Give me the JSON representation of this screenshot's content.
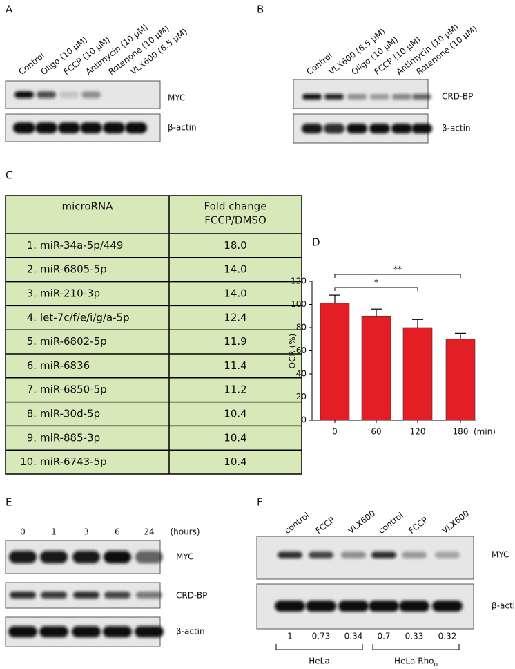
{
  "panels": {
    "A": {
      "label": "A",
      "lanes": [
        "Control",
        "Oligo (10 μM)",
        "FCCP (10 μM)",
        "Antimycin (10 μM)",
        "Rotenone (10 μM)",
        "VLX600 (6.5 μM)"
      ],
      "blots": [
        "MYC",
        "β-actin"
      ]
    },
    "B": {
      "label": "B",
      "lanes": [
        "Control",
        "VLX600 (6.5 μM)",
        "Oligo (10 μM)",
        "FCCP (10 μM)",
        "Antimycin (10 μM)",
        "Rotenone (10 μM)"
      ],
      "blots": [
        "CRD-BP",
        "β-actin"
      ]
    },
    "C": {
      "label": "C",
      "table": {
        "header": {
          "microrna": "microRNA",
          "fold_change": [
            "Fold change",
            "FCCP/DMSO"
          ]
        },
        "rows": [
          [
            "1.",
            "miR-34a-5p/449",
            "18.0"
          ],
          [
            "2.",
            "miR-6805-5p",
            "14.0"
          ],
          [
            "3.",
            "miR-210-3p",
            "14.0"
          ],
          [
            "4.",
            "let-7c/f/e/i/g/a-5p",
            "12.4"
          ],
          [
            "5.",
            "miR-6802-5p",
            "11.9"
          ],
          [
            "6.",
            "miR-6836",
            "11.4"
          ],
          [
            "7.",
            "miR-6850-5p",
            "11.2"
          ],
          [
            "8.",
            "miR-30d-5p",
            "10.4"
          ],
          [
            "9.",
            "miR-885-3p",
            "10.4"
          ],
          [
            "10.",
            "miR-6743-5p",
            "10.4"
          ]
        ]
      }
    },
    "E": {
      "label": "E",
      "times": [
        "0",
        "1",
        "3",
        "6",
        "24"
      ],
      "time_unit": "(hours)",
      "blots": [
        "MYC",
        "CRD-BP",
        "β-actin"
      ]
    },
    "F": {
      "label": "F",
      "lanes": [
        "control",
        "FCCP",
        "VLX600",
        "control",
        "FCCP",
        "VLX600"
      ],
      "blots": [
        "MYC",
        "β-actin"
      ],
      "ratios": [
        "1",
        "0.73",
        "0.34",
        "0.7",
        "0.33",
        "0.32"
      ],
      "groups": [
        {
          "name": "HeLa"
        },
        {
          "name": "HeLa Rho",
          "subscript": "o"
        }
      ]
    }
  },
  "chart_data": {
    "type": "bar",
    "panel_label": "D",
    "categories": [
      "0",
      "60",
      "120",
      "180"
    ],
    "x_unit": "(min)",
    "ylabel": "OCR (%)",
    "values": [
      101,
      90,
      80,
      70
    ],
    "errors": [
      7,
      6,
      7,
      5
    ],
    "color": "#e31e24",
    "ylim": [
      0,
      120
    ],
    "yticks": [
      0,
      20,
      40,
      60,
      80,
      100,
      120
    ],
    "significance": [
      {
        "from": 0,
        "to": 2,
        "label": "*"
      },
      {
        "from": 0,
        "to": 3,
        "label": "**"
      }
    ]
  }
}
